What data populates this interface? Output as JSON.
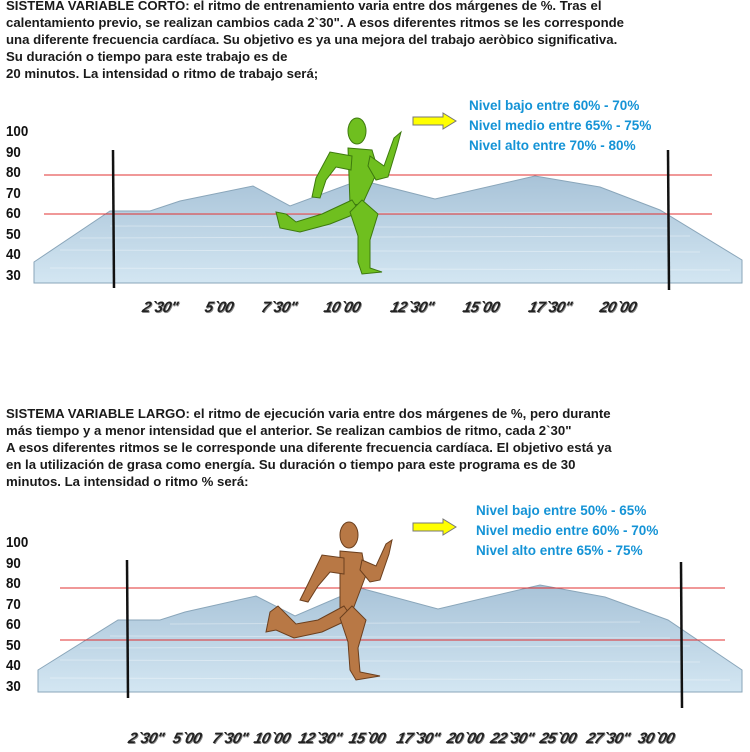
{
  "section_short": {
    "title": "SISTEMA VARIABLE CORTO:",
    "lines": [
      " el ritmo de entrenamiento varia entre dos márgenes de %. Tras el",
      "calentamiento previo, se realizan cambios cada 2`30\". A esos diferentes ritmos se les corresponde",
      "una diferente frecuencia cardíaca. Su objetivo es ya una mejora del trabajo aeròbico significativa.",
      "Su duración o tiempo para este trabajo es de",
      "20 minutos. La intensidad o ritmo de trabajo será;"
    ],
    "levels": [
      "Nivel bajo entre 60% - 70%",
      "Nivel medio entre 65% - 75%",
      "Nivel alto entre 70% - 80%"
    ],
    "level_color": "#1493d6",
    "runner_color": "#6fbf1f",
    "y_ticks": [
      "100",
      "90",
      "80",
      "70",
      "60",
      "50",
      "40",
      "30"
    ],
    "x_ticks": [
      "2`30\"",
      "5`00",
      "7`30\"",
      "10`00",
      "12`30\"",
      "15`00",
      "17`30\"",
      "20`00"
    ],
    "band": [
      60,
      80
    ]
  },
  "section_long": {
    "title": "SISTEMA VARIABLE LARGO:",
    "lines": [
      " el ritmo de ejecución varia entre dos márgenes de %, pero durante",
      "más tiempo y a menor intensidad que el anterior. Se realizan cambios de ritmo, cada 2`30\"",
      "A esos diferentes ritmos se le corresponde una diferente frecuencia cardíaca. El objetivo está ya",
      "en la utilización de grasa como energía. Su duración o tiempo para este programa es de 30",
      "minutos. La intensidad o ritmo % será:"
    ],
    "levels": [
      "Nivel bajo entre 50% - 65%",
      "Nivel medio entre 60% - 70%",
      "Nivel alto entre 65% - 75%"
    ],
    "level_color": "#1493d6",
    "runner_color": "#b87845",
    "y_ticks": [
      "100",
      "90",
      "80",
      "70",
      "60",
      "50",
      "40",
      "30"
    ],
    "x_ticks": [
      "2`30\"",
      "5`00",
      "7`30\"",
      "10`00",
      "12`30\"",
      "15`00",
      "17`30\"",
      "20`00",
      "22`30\"",
      "25`00",
      "27`30\"",
      "30`00"
    ],
    "band": [
      52,
      78
    ]
  },
  "colors": {
    "band_line": "#e03030",
    "mountain_fill": "#b9d3e6",
    "mountain_stroke": "#8aa6ba",
    "marker": "#111111",
    "arrow_fill": "#ffff00"
  },
  "icons": [
    "runner-icon",
    "arrow-right-icon"
  ]
}
